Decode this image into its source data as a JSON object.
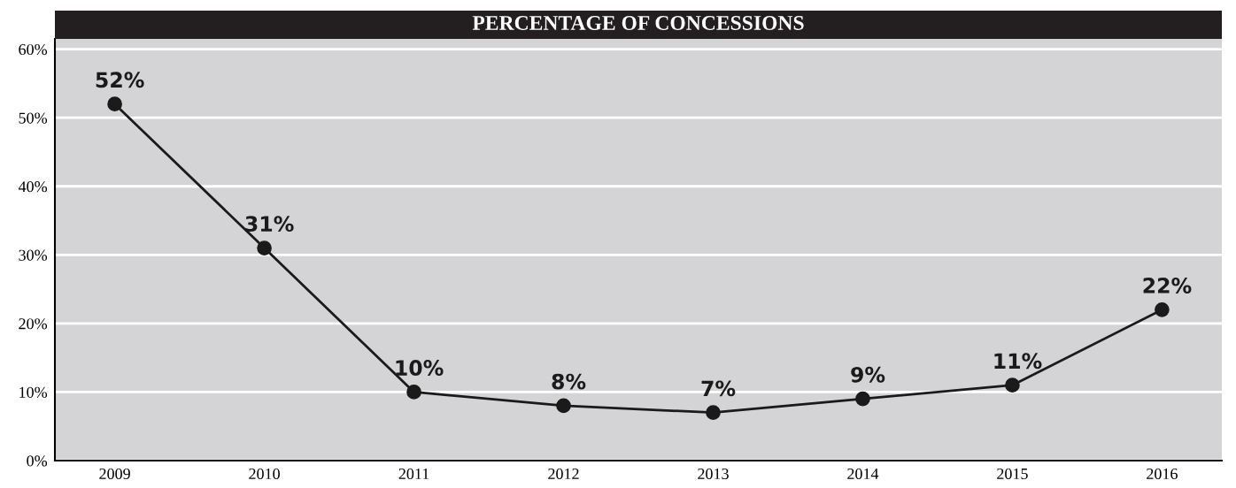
{
  "chart_data": {
    "type": "line",
    "title": "PERCENTAGE OF CONCESSIONS",
    "categories": [
      "2009",
      "2010",
      "2011",
      "2012",
      "2013",
      "2014",
      "2015",
      "2016"
    ],
    "series": [
      {
        "color": "#1a1a1a",
        "values": [
          52,
          31,
          10,
          8,
          7,
          9,
          11,
          22
        ]
      }
    ],
    "value_labels": [
      "52%",
      "31%",
      "10%",
      "8%",
      "7%",
      "9%",
      "11%",
      "22%"
    ],
    "ylim": [
      0,
      61.5
    ],
    "yticks": [
      {
        "value": 0,
        "label": "0%"
      },
      {
        "value": 10,
        "label": "10%"
      },
      {
        "value": 20,
        "label": "20%"
      },
      {
        "value": 30,
        "label": "30%"
      },
      {
        "value": 40,
        "label": "40%"
      },
      {
        "value": 50,
        "label": "50%"
      },
      {
        "value": 60,
        "label": "60%"
      }
    ],
    "grid": "y",
    "marker": "circle",
    "line_style": "solid",
    "legend": false
  }
}
